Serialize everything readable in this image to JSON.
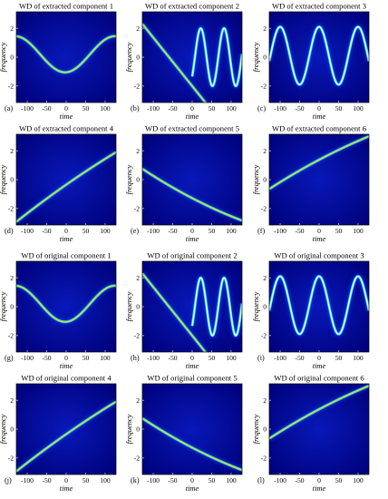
{
  "figure": {
    "background": "#ffffff"
  },
  "colormap": [
    "#00007a",
    "#1040f0",
    "#14c8ff",
    "#9cff60",
    "#ffc800",
    "#ff3010"
  ],
  "chart_data": [
    {
      "type": "heatmap",
      "label": "(a)",
      "title": "WD of extracted component 1",
      "xlabel": "time",
      "ylabel": "frequency",
      "xlim": [
        -128,
        128
      ],
      "ylim": [
        -3.14,
        3.14
      ],
      "xticks": [
        -100,
        -50,
        0,
        50,
        100
      ],
      "yticks": [
        2,
        0,
        -2
      ],
      "ridges": [
        {
          "kind": "sin",
          "offset": 0.2,
          "amp": 1.25,
          "period": 256,
          "phase": -1.5,
          "peak": 0.92
        }
      ]
    },
    {
      "type": "heatmap",
      "label": "(b)",
      "title": "WD of extracted component 2",
      "xlabel": "time",
      "ylabel": "frequency",
      "xlim": [
        -128,
        128
      ],
      "ylim": [
        -3.14,
        3.14
      ],
      "xticks": [
        -100,
        -50,
        0,
        50,
        100
      ],
      "yticks": [
        2,
        0,
        -2
      ],
      "ridges": [
        {
          "kind": "linear",
          "x0": -128,
          "x1": 0,
          "y0": 2.3,
          "y1": -2.0,
          "peak": 0.95
        },
        {
          "kind": "cos",
          "start": 0,
          "end": 128,
          "offset": 0,
          "amp": 2.0,
          "period": 60,
          "phase": -2.3,
          "peak": 0.6
        }
      ]
    },
    {
      "type": "heatmap",
      "label": "(c)",
      "title": "WD of extracted component 3",
      "xlabel": "time",
      "ylabel": "frequency",
      "xlim": [
        -128,
        128
      ],
      "ylim": [
        -3.14,
        3.14
      ],
      "xticks": [
        -100,
        -50,
        0,
        50,
        100
      ],
      "yticks": [
        2,
        0,
        -2
      ],
      "ridges": [
        {
          "kind": "cos",
          "offset": 0.1,
          "amp": 2.0,
          "period": 100,
          "phase": 0,
          "peak": 0.6
        }
      ]
    },
    {
      "type": "heatmap",
      "label": "(d)",
      "title": "WD of extracted component 4",
      "xlabel": "time",
      "ylabel": "frequency",
      "xlim": [
        -128,
        128
      ],
      "ylim": [
        -3.14,
        3.14
      ],
      "xticks": [
        -100,
        -50,
        0,
        50,
        100
      ],
      "yticks": [
        2,
        0,
        -2
      ],
      "ridges": [
        {
          "kind": "quad",
          "x0": -120,
          "x1": 128,
          "y0": -2.75,
          "y1": 1.9,
          "curve": -0.6,
          "peak": 0.95
        }
      ]
    },
    {
      "type": "heatmap",
      "label": "(e)",
      "title": "WD of extracted component 5",
      "xlabel": "time",
      "ylabel": "frequency",
      "xlim": [
        -128,
        128
      ],
      "ylim": [
        -3.14,
        3.14
      ],
      "xticks": [
        -100,
        -50,
        0,
        50,
        100
      ],
      "yticks": [
        2,
        0,
        -2
      ],
      "ridges": [
        {
          "kind": "quad",
          "x0": -128,
          "x1": 120,
          "y0": 0.75,
          "y1": -2.75,
          "curve": 0.9,
          "peak": 0.95
        }
      ]
    },
    {
      "type": "heatmap",
      "label": "(f)",
      "title": "WD of extracted component 6",
      "xlabel": "time",
      "ylabel": "frequency",
      "xlim": [
        -128,
        128
      ],
      "ylim": [
        -3.14,
        3.14
      ],
      "xticks": [
        -100,
        -50,
        0,
        50,
        100
      ],
      "yticks": [
        2,
        0,
        -2
      ],
      "ridges": [
        {
          "kind": "quad",
          "x0": -128,
          "x1": 128,
          "y0": -0.65,
          "y1": 3.0,
          "curve": -0.8,
          "peak": 0.95
        }
      ]
    },
    {
      "type": "heatmap",
      "label": "(g)",
      "title": "WD of original component 1",
      "xlabel": "time",
      "ylabel": "frequency",
      "xlim": [
        -128,
        128
      ],
      "ylim": [
        -3.14,
        3.14
      ],
      "xticks": [
        -100,
        -50,
        0,
        50,
        100
      ],
      "yticks": [
        2,
        0,
        -2
      ],
      "ridges": [
        {
          "kind": "sin",
          "offset": 0.2,
          "amp": 1.25,
          "period": 256,
          "phase": -1.5,
          "peak": 0.92
        }
      ]
    },
    {
      "type": "heatmap",
      "label": "(h)",
      "title": "WD of original component 2",
      "xlabel": "time",
      "ylabel": "frequency",
      "xlim": [
        -128,
        128
      ],
      "ylim": [
        -3.14,
        3.14
      ],
      "xticks": [
        -100,
        -50,
        0,
        50,
        100
      ],
      "yticks": [
        2,
        0,
        -2
      ],
      "ridges": [
        {
          "kind": "linear",
          "x0": -128,
          "x1": 0,
          "y0": 2.3,
          "y1": -2.0,
          "peak": 0.95
        },
        {
          "kind": "cos",
          "start": 0,
          "end": 128,
          "offset": 0,
          "amp": 2.0,
          "period": 60,
          "phase": -2.3,
          "peak": 0.6
        }
      ]
    },
    {
      "type": "heatmap",
      "label": "(i)",
      "title": "WD of original component 3",
      "xlabel": "time",
      "ylabel": "frequency",
      "xlim": [
        -128,
        128
      ],
      "ylim": [
        -3.14,
        3.14
      ],
      "xticks": [
        -100,
        -50,
        0,
        50,
        100
      ],
      "yticks": [
        2,
        0,
        -2
      ],
      "ridges": [
        {
          "kind": "cos",
          "offset": 0.1,
          "amp": 2.0,
          "period": 100,
          "phase": 0,
          "peak": 0.6
        }
      ]
    },
    {
      "type": "heatmap",
      "label": "(j)",
      "title": "WD of original component 4",
      "xlabel": "time",
      "ylabel": "frequency",
      "xlim": [
        -128,
        128
      ],
      "ylim": [
        -3.14,
        3.14
      ],
      "xticks": [
        -100,
        -50,
        0,
        50,
        100
      ],
      "yticks": [
        2,
        0,
        -2
      ],
      "ridges": [
        {
          "kind": "quad",
          "x0": -120,
          "x1": 128,
          "y0": -2.75,
          "y1": 1.9,
          "curve": -0.6,
          "peak": 0.95
        }
      ]
    },
    {
      "type": "heatmap",
      "label": "(k)",
      "title": "WD of original component 5",
      "xlabel": "time",
      "ylabel": "frequency",
      "xlim": [
        -128,
        128
      ],
      "ylim": [
        -3.14,
        3.14
      ],
      "xticks": [
        -100,
        -50,
        0,
        50,
        100
      ],
      "yticks": [
        2,
        0,
        -2
      ],
      "ridges": [
        {
          "kind": "quad",
          "x0": -128,
          "x1": 120,
          "y0": 0.75,
          "y1": -2.75,
          "curve": 0.9,
          "peak": 0.95
        }
      ]
    },
    {
      "type": "heatmap",
      "label": "(l)",
      "title": "WD of original component 6",
      "xlabel": "time",
      "ylabel": "frequency",
      "xlim": [
        -128,
        128
      ],
      "ylim": [
        -3.14,
        3.14
      ],
      "xticks": [
        -100,
        -50,
        0,
        50,
        100
      ],
      "yticks": [
        2,
        0,
        -2
      ],
      "ridges": [
        {
          "kind": "quad",
          "x0": -128,
          "x1": 128,
          "y0": -0.65,
          "y1": 3.0,
          "curve": -0.8,
          "peak": 0.95
        }
      ]
    }
  ]
}
